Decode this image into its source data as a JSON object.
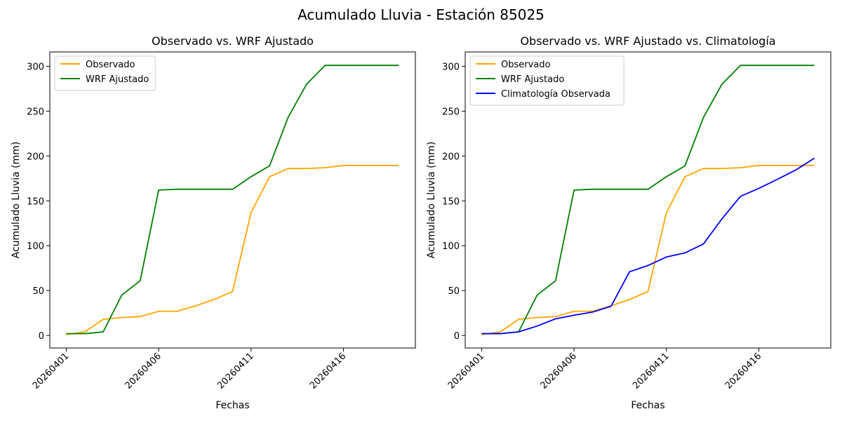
{
  "figure": {
    "suptitle": "Acumulado Lluvia - Estación 85025"
  },
  "chart_data": [
    {
      "type": "line",
      "title": "Observado vs. WRF Ajustado",
      "xlabel": "Fechas",
      "ylabel": "Acumulado Lluvia (mm)",
      "x": [
        "20260401",
        "20260402",
        "20260403",
        "20260404",
        "20260405",
        "20260406",
        "20260407",
        "20260408",
        "20260409",
        "20260410",
        "20260411",
        "20260412",
        "20260413",
        "20260414",
        "20260415",
        "20260416",
        "20260417",
        "20260418",
        "20260419"
      ],
      "xticks": [
        "20260401",
        "20260406",
        "20260411",
        "20260416"
      ],
      "yticks": [
        0,
        50,
        100,
        150,
        200,
        250,
        300
      ],
      "ylim": [
        -14,
        316
      ],
      "legend_loc": "upper left",
      "series": [
        {
          "name": "Observado",
          "color": "#ffa500",
          "values": [
            1,
            4,
            18,
            20,
            21,
            27,
            27,
            33,
            40,
            49,
            137,
            177,
            186,
            186,
            187,
            189.5,
            189.5,
            189.5,
            189.5
          ]
        },
        {
          "name": "WRF Ajustado",
          "color": "#008000",
          "values": [
            2,
            2,
            4,
            45,
            61,
            162,
            163,
            163,
            163,
            163,
            177,
            189,
            243,
            280,
            301,
            301,
            301,
            301,
            301
          ]
        }
      ]
    },
    {
      "type": "line",
      "title": "Observado vs. WRF Ajustado vs. Climatología",
      "xlabel": "Fechas",
      "ylabel": "Acumulado Lluvia (mm)",
      "x": [
        "20260401",
        "20260402",
        "20260403",
        "20260404",
        "20260405",
        "20260406",
        "20260407",
        "20260408",
        "20260409",
        "20260410",
        "20260411",
        "20260412",
        "20260413",
        "20260414",
        "20260415",
        "20260416",
        "20260417",
        "20260418",
        "20260419"
      ],
      "xticks": [
        "20260401",
        "20260406",
        "20260411",
        "20260416"
      ],
      "yticks": [
        0,
        50,
        100,
        150,
        200,
        250,
        300
      ],
      "ylim": [
        -14,
        316
      ],
      "legend_loc": "upper left",
      "series": [
        {
          "name": "Observado",
          "color": "#ffa500",
          "values": [
            1,
            4,
            18,
            20,
            21,
            27,
            27,
            33,
            40,
            49,
            137,
            177,
            186,
            186,
            187,
            189.5,
            189.5,
            189.5,
            189.5
          ]
        },
        {
          "name": "WRF Ajustado",
          "color": "#008000",
          "values": [
            2,
            2,
            4,
            45,
            61,
            162,
            163,
            163,
            163,
            163,
            177,
            189,
            243,
            280,
            301,
            301,
            301,
            301,
            301
          ]
        },
        {
          "name": "Climatología Observada",
          "color": "#0000ff",
          "values": [
            2,
            2,
            4,
            10.5,
            18.5,
            22.5,
            26,
            32.5,
            71,
            78,
            87.5,
            92,
            102,
            130,
            155,
            164,
            174,
            184.5,
            197.5
          ]
        }
      ]
    }
  ]
}
